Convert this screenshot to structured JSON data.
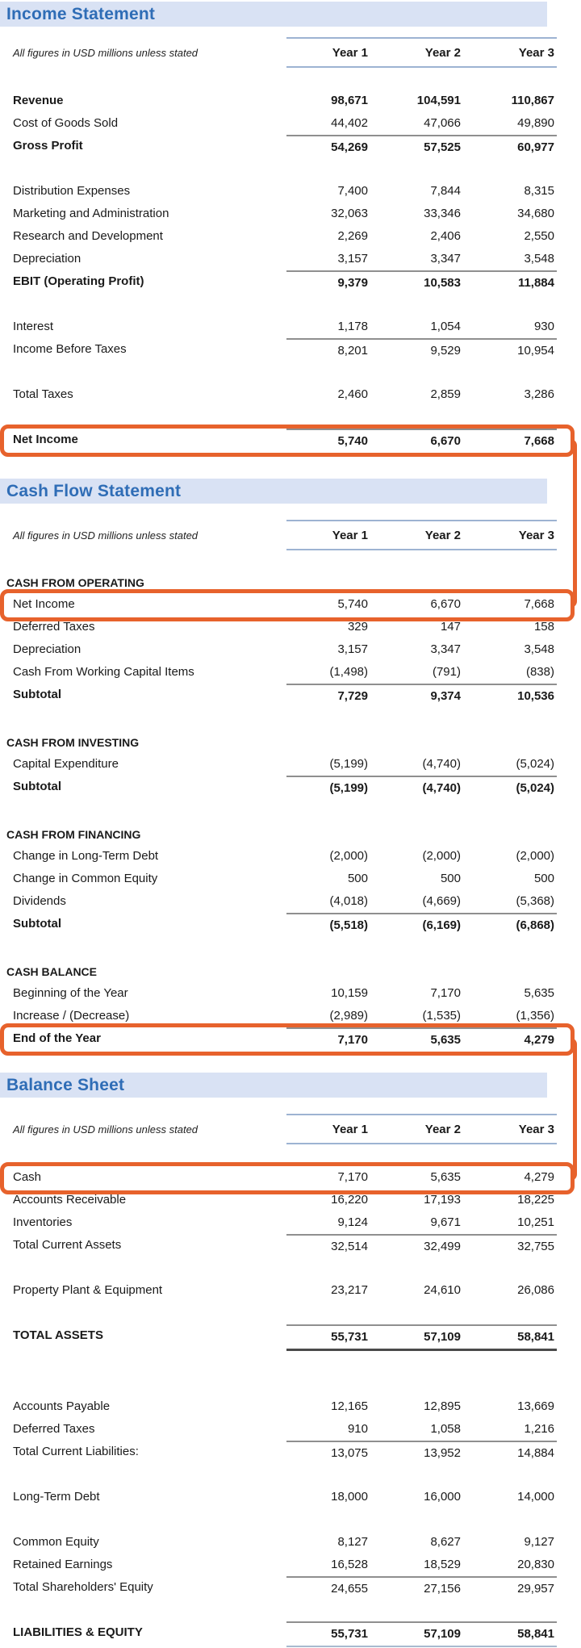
{
  "unit_note": "All figures in USD millions unless stated",
  "columns": [
    "Year 1",
    "Year 2",
    "Year 3"
  ],
  "colors": {
    "accent_orange": "#E7622C",
    "band_bg": "#D9E2F4",
    "band_text": "#2F6DB6"
  },
  "sections": [
    {
      "title": "Income Statement",
      "groups": [
        {
          "rows": [
            {
              "label": "Revenue",
              "values": [
                "98,671",
                "104,591",
                "110,867"
              ],
              "bold": true
            },
            {
              "label": "Cost of Goods Sold",
              "values": [
                "44,402",
                "47,066",
                "49,890"
              ]
            },
            {
              "label": "Gross Profit",
              "values": [
                "54,269",
                "57,525",
                "60,977"
              ],
              "bold": true,
              "rule_above": true
            }
          ]
        },
        {
          "rows": [
            {
              "label": "Distribution Expenses",
              "values": [
                "7,400",
                "7,844",
                "8,315"
              ]
            },
            {
              "label": "Marketing and Administration",
              "values": [
                "32,063",
                "33,346",
                "34,680"
              ]
            },
            {
              "label": "Research and Development",
              "values": [
                "2,269",
                "2,406",
                "2,550"
              ]
            },
            {
              "label": "Depreciation",
              "values": [
                "3,157",
                "3,347",
                "3,548"
              ]
            },
            {
              "label": "EBIT (Operating Profit)",
              "values": [
                "9,379",
                "10,583",
                "11,884"
              ],
              "bold": true,
              "rule_above": true
            }
          ]
        },
        {
          "rows": [
            {
              "label": "Interest",
              "values": [
                "1,178",
                "1,054",
                "930"
              ]
            },
            {
              "label": "Income Before Taxes",
              "values": [
                "8,201",
                "9,529",
                "10,954"
              ],
              "rule_above": true
            }
          ]
        },
        {
          "rows": [
            {
              "label": "Total Taxes",
              "values": [
                "2,460",
                "2,859",
                "3,286"
              ]
            }
          ]
        },
        {
          "rows": [
            {
              "label": "Net Income",
              "values": [
                "5,740",
                "6,670",
                "7,668"
              ],
              "bold": true,
              "rule_above": true,
              "rule_below_strong": true,
              "box_id": "net-income-is"
            }
          ]
        }
      ]
    },
    {
      "title": "Cash Flow Statement",
      "groups": [
        {
          "caption": "CASH FROM OPERATING",
          "rows": [
            {
              "label": "Net Income",
              "values": [
                "5,740",
                "6,670",
                "7,668"
              ],
              "box_id": "net-income-cf"
            },
            {
              "label": "Deferred Taxes",
              "values": [
                "329",
                "147",
                "158"
              ]
            },
            {
              "label": "Depreciation",
              "values": [
                "3,157",
                "3,347",
                "3,548"
              ]
            },
            {
              "label": "Cash From Working Capital Items",
              "values": [
                "(1,498)",
                "(791)",
                "(838)"
              ]
            },
            {
              "label": "Subtotal",
              "values": [
                "7,729",
                "9,374",
                "10,536"
              ],
              "bold": true,
              "rule_above": true
            }
          ]
        },
        {
          "caption": "CASH FROM INVESTING",
          "rows": [
            {
              "label": "Capital Expenditure",
              "values": [
                "(5,199)",
                "(4,740)",
                "(5,024)"
              ]
            },
            {
              "label": "Subtotal",
              "values": [
                "(5,199)",
                "(4,740)",
                "(5,024)"
              ],
              "bold": true,
              "rule_above": true
            }
          ]
        },
        {
          "caption": "CASH FROM FINANCING",
          "rows": [
            {
              "label": "Change in Long-Term Debt",
              "values": [
                "(2,000)",
                "(2,000)",
                "(2,000)"
              ]
            },
            {
              "label": "Change in Common Equity",
              "values": [
                "500",
                "500",
                "500"
              ]
            },
            {
              "label": "Dividends",
              "values": [
                "(4,018)",
                "(4,669)",
                "(5,368)"
              ]
            },
            {
              "label": "Subtotal",
              "values": [
                "(5,518)",
                "(6,169)",
                "(6,868)"
              ],
              "bold": true,
              "rule_above": true
            }
          ]
        },
        {
          "caption": "CASH BALANCE",
          "rows": [
            {
              "label": "Beginning of the Year",
              "values": [
                "10,159",
                "7,170",
                "5,635"
              ]
            },
            {
              "label": "Increase / (Decrease)",
              "values": [
                "(2,989)",
                "(1,535)",
                "(1,356)"
              ]
            },
            {
              "label": "End of the Year",
              "values": [
                "7,170",
                "5,635",
                "4,279"
              ],
              "bold": true,
              "rule_above": true,
              "rule_below_strong": true,
              "box_id": "end-of-year-cf"
            }
          ]
        }
      ]
    },
    {
      "title": "Balance Sheet",
      "groups": [
        {
          "rows": [
            {
              "label": "Cash",
              "values": [
                "7,170",
                "5,635",
                "4,279"
              ],
              "box_id": "cash-bs"
            },
            {
              "label": "Accounts Receivable",
              "values": [
                "16,220",
                "17,193",
                "18,225"
              ]
            },
            {
              "label": "Inventories",
              "values": [
                "9,124",
                "9,671",
                "10,251"
              ]
            },
            {
              "label": "Total Current Assets",
              "values": [
                "32,514",
                "32,499",
                "32,755"
              ],
              "rule_above": true
            }
          ]
        },
        {
          "rows": [
            {
              "label": "Property Plant & Equipment",
              "values": [
                "23,217",
                "24,610",
                "26,086"
              ]
            }
          ]
        },
        {
          "rows": [
            {
              "label": "TOTAL ASSETS",
              "values": [
                "55,731",
                "57,109",
                "58,841"
              ],
              "bold": true,
              "rule_above": true,
              "rule_below_strong": true
            }
          ]
        },
        {
          "gap_before": "lg",
          "rows": [
            {
              "label": "Accounts Payable",
              "values": [
                "12,165",
                "12,895",
                "13,669"
              ]
            },
            {
              "label": "Deferred Taxes",
              "values": [
                "910",
                "1,058",
                "1,216"
              ]
            },
            {
              "label": "Total Current Liabilities:",
              "values": [
                "13,075",
                "13,952",
                "14,884"
              ],
              "rule_above": true
            }
          ]
        },
        {
          "rows": [
            {
              "label": "Long-Term Debt",
              "values": [
                "18,000",
                "16,000",
                "14,000"
              ]
            }
          ]
        },
        {
          "rows": [
            {
              "label": "Common Equity",
              "values": [
                "8,127",
                "8,627",
                "9,127"
              ]
            },
            {
              "label": "Retained Earnings",
              "values": [
                "16,528",
                "18,529",
                "20,830"
              ]
            },
            {
              "label": "Total Shareholders' Equity",
              "values": [
                "24,655",
                "27,156",
                "29,957"
              ],
              "rule_above": true
            }
          ]
        },
        {
          "rows": [
            {
              "label": "LIABILITIES & EQUITY",
              "values": [
                "55,731",
                "57,109",
                "58,841"
              ],
              "bold": true,
              "rule_above": true,
              "rule_below_light": true
            }
          ]
        }
      ]
    }
  ],
  "connectors": [
    {
      "from": "net-income-is",
      "to": "net-income-cf"
    },
    {
      "from": "end-of-year-cf",
      "to": "cash-bs"
    }
  ]
}
